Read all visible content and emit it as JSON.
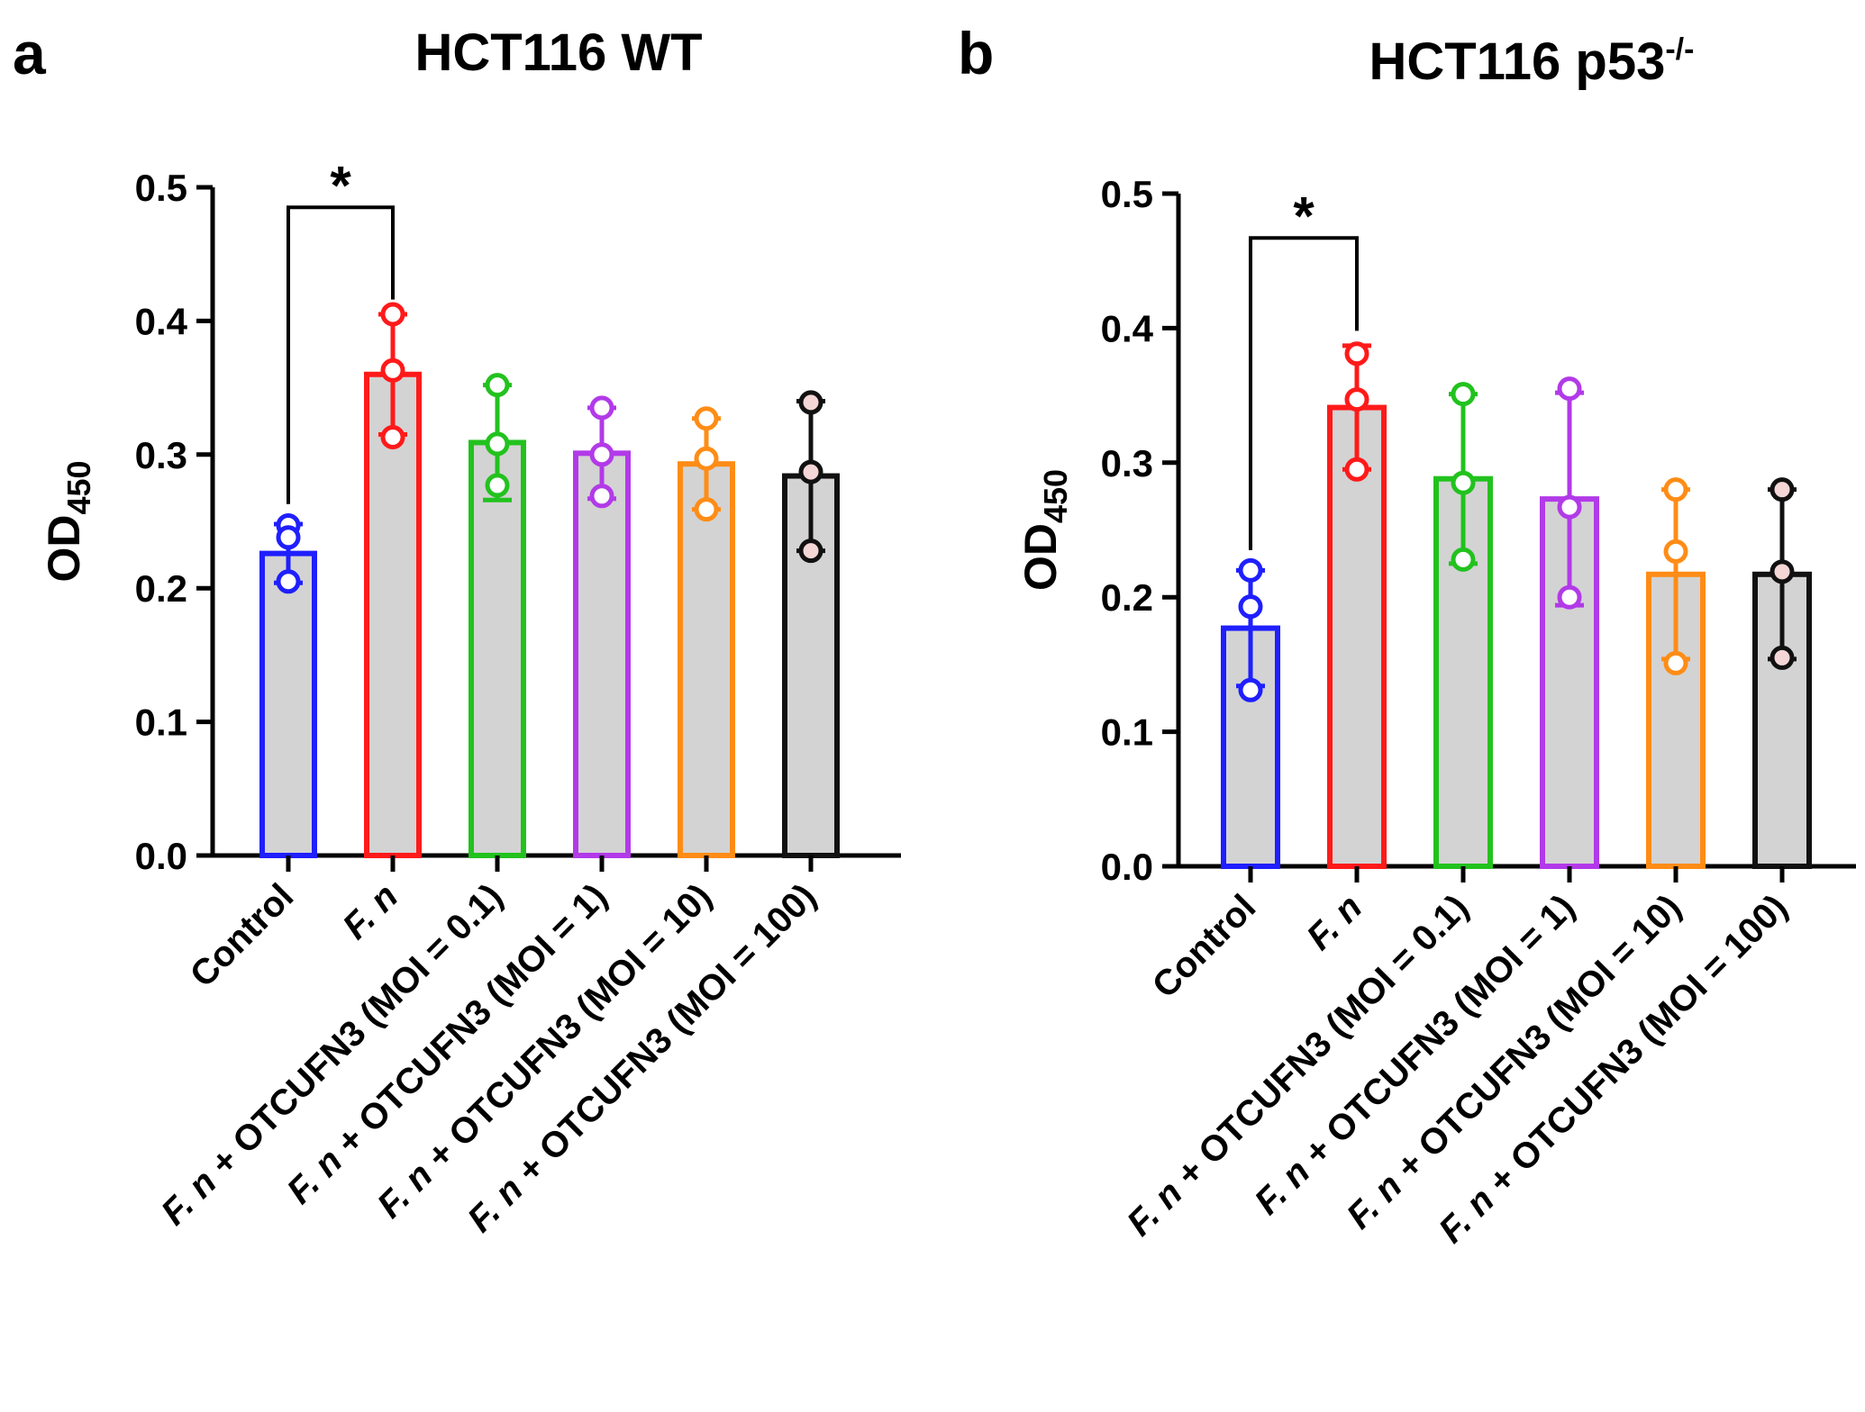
{
  "chart_data": [
    {
      "type": "bar",
      "panel": "a",
      "title": "HCT116 WT",
      "ylabel": "OD",
      "ylabel_sub": "450",
      "ylim": [
        0,
        0.5
      ],
      "yticks": [
        "0.0",
        "0.1",
        "0.2",
        "0.3",
        "0.4",
        "0.5"
      ],
      "categories": [
        {
          "prefix": "",
          "text": "Control"
        },
        {
          "prefix": "F. n",
          "text": ""
        },
        {
          "prefix": "F. n",
          "text": " + OTCUFN3 (MOI = 0.1)"
        },
        {
          "prefix": "F. n",
          "text": " + OTCUFN3 (MOI = 1)"
        },
        {
          "prefix": "F. n",
          "text": " + OTCUFN3 (MOI = 10)"
        },
        {
          "prefix": "F. n",
          "text": " + OTCUFN3 (MOI = 100)"
        }
      ],
      "colors": [
        "#1f1fff",
        "#ff1a1a",
        "#22c21e",
        "#b23ae8",
        "#ff8c16",
        "#111111"
      ],
      "values": [
        0.226,
        0.36,
        0.309,
        0.301,
        0.293,
        0.284
      ],
      "error_high": [
        0.248,
        0.405,
        0.352,
        0.335,
        0.327,
        0.34
      ],
      "error_low": [
        0.204,
        0.315,
        0.266,
        0.267,
        0.259,
        0.228
      ],
      "points": [
        [
          0.247,
          0.238,
          0.205
        ],
        [
          0.405,
          0.363,
          0.313
        ],
        [
          0.352,
          0.308,
          0.277
        ],
        [
          0.335,
          0.3,
          0.269
        ],
        [
          0.327,
          0.297,
          0.259
        ],
        [
          0.339,
          0.287,
          0.228
        ]
      ],
      "significance": {
        "from": 0,
        "to": 1,
        "label": "*"
      }
    },
    {
      "type": "bar",
      "panel": "b",
      "title": "HCT116 p53",
      "title_sup": "-/-",
      "ylabel": "OD",
      "ylabel_sub": "450",
      "ylim": [
        0,
        0.5
      ],
      "yticks": [
        "0.0",
        "0.1",
        "0.2",
        "0.3",
        "0.4",
        "0.5"
      ],
      "categories": [
        {
          "prefix": "",
          "text": "Control"
        },
        {
          "prefix": "F. n",
          "text": ""
        },
        {
          "prefix": "F. n",
          "text": " + OTCUFN3 (MOI = 0.1)"
        },
        {
          "prefix": "F. n",
          "text": " + OTCUFN3 (MOI = 1)"
        },
        {
          "prefix": "F. n",
          "text": " + OTCUFN3 (MOI = 10)"
        },
        {
          "prefix": "F. n",
          "text": " + OTCUFN3 (MOI = 100)"
        }
      ],
      "colors": [
        "#1f1fff",
        "#ff1a1a",
        "#22c21e",
        "#b23ae8",
        "#ff8c16",
        "#111111"
      ],
      "values": [
        0.177,
        0.341,
        0.288,
        0.273,
        0.217,
        0.217
      ],
      "error_high": [
        0.22,
        0.387,
        0.351,
        0.352,
        0.28,
        0.28
      ],
      "error_low": [
        0.134,
        0.295,
        0.225,
        0.194,
        0.154,
        0.154
      ],
      "points": [
        [
          0.22,
          0.193,
          0.131
        ],
        [
          0.381,
          0.347,
          0.295
        ],
        [
          0.351,
          0.285,
          0.228
        ],
        [
          0.355,
          0.267,
          0.2
        ],
        [
          0.28,
          0.234,
          0.151
        ],
        [
          0.28,
          0.219,
          0.155
        ]
      ],
      "significance": {
        "from": 0,
        "to": 1,
        "label": "*"
      }
    }
  ]
}
